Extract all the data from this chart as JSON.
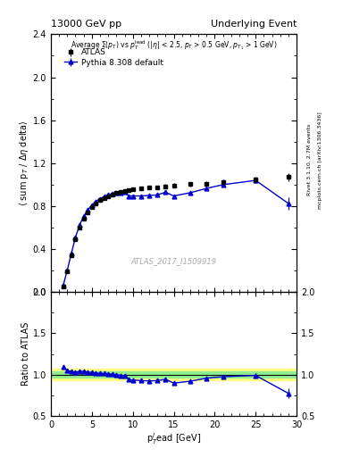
{
  "title_left": "13000 GeV pp",
  "title_right": "Underlying Event",
  "annotation": "ATLAS_2017_I1509919",
  "right_label_1": "Rivet 3.1.10, 2.7M events",
  "right_label_2": "mcplots.cern.ch [arXiv:1306.3436]",
  "ylabel_main": "$\\langle$ sum p$_T$ / $\\Delta\\eta$ delta$\\rangle$",
  "ylabel_ratio": "Ratio to ATLAS",
  "xlabel": "p$_T^l$ead [GeV]",
  "legend_data": "ATLAS",
  "legend_mc": "Pythia 8.308 default",
  "ylim_main": [
    0,
    2.4
  ],
  "ylim_ratio": [
    0.5,
    2.0
  ],
  "xlim": [
    0,
    30
  ],
  "atlas_x": [
    1.5,
    2.0,
    2.5,
    3.0,
    3.5,
    4.0,
    4.5,
    5.0,
    5.5,
    6.0,
    6.5,
    7.0,
    7.5,
    8.0,
    8.5,
    9.0,
    9.5,
    10.0,
    11.0,
    12.0,
    13.0,
    14.0,
    15.0,
    17.0,
    19.0,
    21.0,
    25.0,
    29.0
  ],
  "atlas_y": [
    0.055,
    0.195,
    0.345,
    0.495,
    0.6,
    0.68,
    0.745,
    0.79,
    0.825,
    0.855,
    0.875,
    0.895,
    0.91,
    0.925,
    0.935,
    0.945,
    0.95,
    0.96,
    0.965,
    0.975,
    0.975,
    0.985,
    0.995,
    1.005,
    1.01,
    1.025,
    1.045,
    1.07
  ],
  "atlas_yerr": [
    0.004,
    0.006,
    0.008,
    0.01,
    0.012,
    0.013,
    0.014,
    0.015,
    0.015,
    0.015,
    0.015,
    0.016,
    0.016,
    0.016,
    0.016,
    0.016,
    0.016,
    0.016,
    0.017,
    0.017,
    0.018,
    0.019,
    0.02,
    0.022,
    0.025,
    0.028,
    0.032,
    0.035
  ],
  "mc_x": [
    1.5,
    2.0,
    2.5,
    3.0,
    3.5,
    4.0,
    4.5,
    5.0,
    5.5,
    6.0,
    6.5,
    7.0,
    7.5,
    8.0,
    8.5,
    9.0,
    9.5,
    10.0,
    11.0,
    12.0,
    13.0,
    14.0,
    15.0,
    17.0,
    19.0,
    21.0,
    25.0,
    29.0
  ],
  "mc_y": [
    0.06,
    0.205,
    0.36,
    0.51,
    0.625,
    0.705,
    0.765,
    0.81,
    0.845,
    0.87,
    0.89,
    0.905,
    0.915,
    0.925,
    0.925,
    0.93,
    0.895,
    0.895,
    0.895,
    0.9,
    0.905,
    0.93,
    0.895,
    0.925,
    0.965,
    1.0,
    1.04,
    0.825
  ],
  "mc_yerr": [
    0.003,
    0.004,
    0.006,
    0.007,
    0.008,
    0.009,
    0.009,
    0.01,
    0.01,
    0.01,
    0.01,
    0.01,
    0.01,
    0.01,
    0.01,
    0.01,
    0.01,
    0.01,
    0.01,
    0.01,
    0.011,
    0.011,
    0.012,
    0.013,
    0.015,
    0.017,
    0.025,
    0.055
  ],
  "ratio_mc_y": [
    1.09,
    1.05,
    1.04,
    1.03,
    1.04,
    1.04,
    1.03,
    1.025,
    1.02,
    1.015,
    1.015,
    1.01,
    1.005,
    1.0,
    0.99,
    0.985,
    0.942,
    0.933,
    0.928,
    0.923,
    0.928,
    0.943,
    0.897,
    0.92,
    0.957,
    0.975,
    0.99,
    0.773
  ],
  "ratio_mc_yerr": [
    0.008,
    0.008,
    0.008,
    0.008,
    0.009,
    0.009,
    0.009,
    0.009,
    0.009,
    0.009,
    0.009,
    0.01,
    0.01,
    0.01,
    0.01,
    0.01,
    0.01,
    0.01,
    0.01,
    0.01,
    0.011,
    0.012,
    0.012,
    0.014,
    0.018,
    0.022,
    0.032,
    0.062
  ],
  "color_mc": "#0000cc",
  "color_atlas": "black",
  "color_band_green": "#90ee90",
  "color_band_yellow": "#ffff80"
}
